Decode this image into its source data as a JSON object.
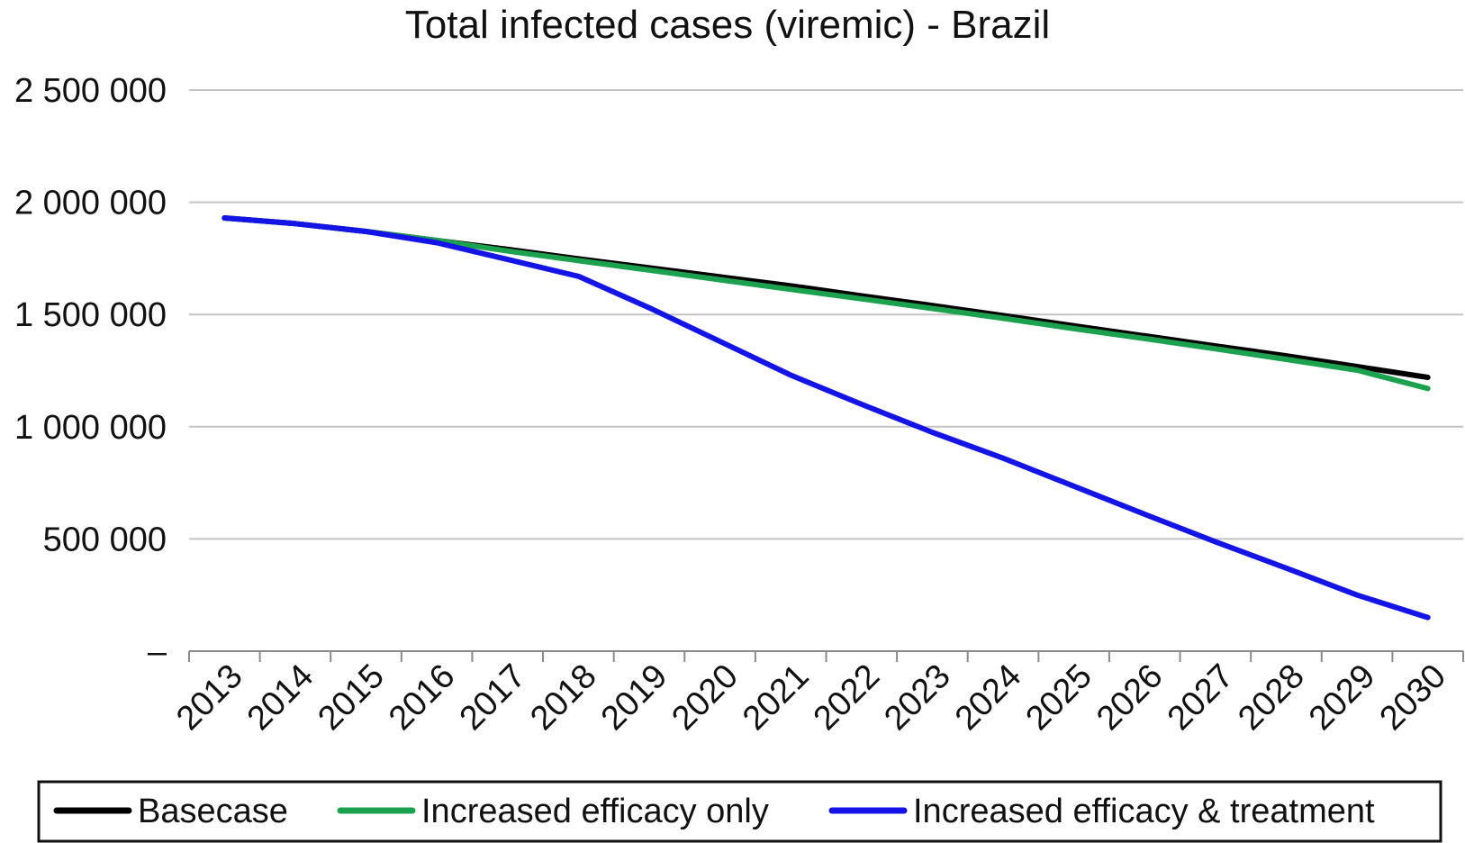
{
  "chart_data": {
    "type": "line",
    "title": "Total infected cases (viremic) - Brazil",
    "xlabel": "",
    "ylabel": "",
    "categories": [
      "2013",
      "2014",
      "2015",
      "2016",
      "2017",
      "2018",
      "2019",
      "2020",
      "2021",
      "2022",
      "2023",
      "2024",
      "2025",
      "2026",
      "2027",
      "2028",
      "2029",
      "2030"
    ],
    "ylim": [
      0,
      2500000
    ],
    "yticks": [
      0,
      500000,
      1000000,
      1500000,
      2000000,
      2500000
    ],
    "ytick_labels": [
      "–",
      "500 000",
      "1 000 000",
      "1 500 000",
      "2 000 000",
      "2 500 000"
    ],
    "grid": true,
    "legend_position": "bottom",
    "series": [
      {
        "name": "Basecase",
        "color": "#000000",
        "values": [
          1930000,
          1905000,
          1870000,
          1830000,
          1790000,
          1748000,
          1708000,
          1668000,
          1628000,
          1583000,
          1540000,
          1495000,
          1450000,
          1405000,
          1360000,
          1316000,
          1268000,
          1220000
        ]
      },
      {
        "name": "Increased efficacy only",
        "color": "#1ca24e",
        "values": [
          1930000,
          1905000,
          1870000,
          1830000,
          1783000,
          1740000,
          1698000,
          1655000,
          1612000,
          1570000,
          1527000,
          1483000,
          1437000,
          1393000,
          1347000,
          1300000,
          1252000,
          1170000
        ]
      },
      {
        "name": "Increased efficacy & treatment",
        "color": "#1414e6",
        "values": [
          1930000,
          1905000,
          1870000,
          1820000,
          1745000,
          1670000,
          1530000,
          1380000,
          1230000,
          1100000,
          975000,
          860000,
          735000,
          610000,
          487000,
          370000,
          250000,
          150000
        ]
      }
    ]
  }
}
